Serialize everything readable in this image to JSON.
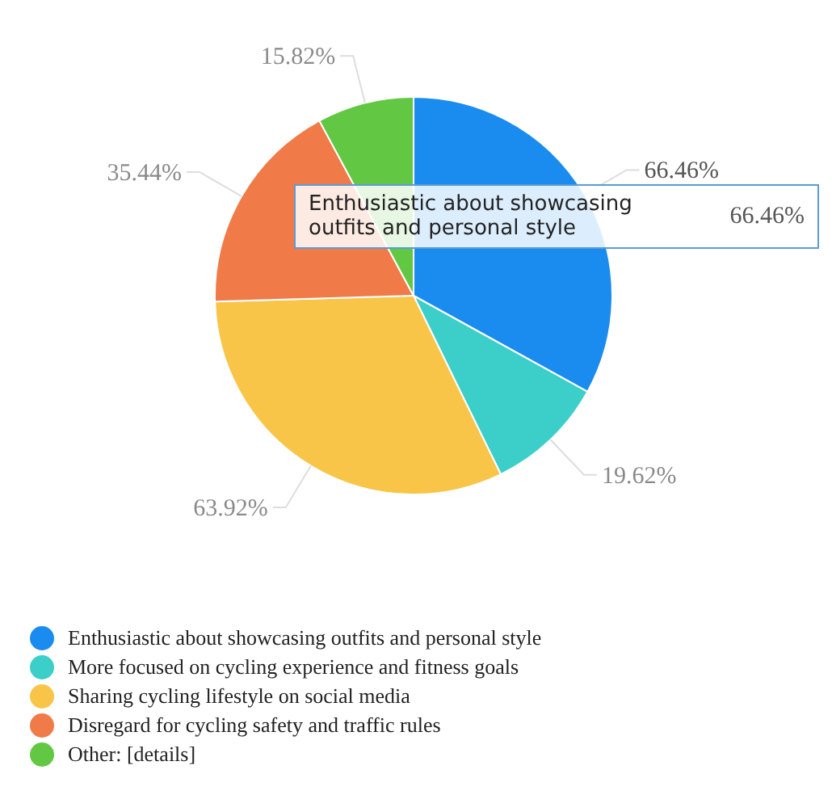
{
  "chart_data": {
    "type": "pie",
    "categories": [
      "Enthusiastic about showcasing outfits and personal style",
      "More focused on cycling experience and fitness goals",
      "Sharing cycling lifestyle on social media",
      "Disregard for cycling safety and traffic rules",
      "Other: [details]"
    ],
    "values": [
      66.46,
      19.62,
      63.92,
      35.44,
      15.82
    ],
    "value_labels": [
      "66.46%",
      "19.62%",
      "63.92%",
      "35.44%",
      "15.82%"
    ],
    "colors": [
      "#1a8cf0",
      "#3ccfc9",
      "#f8c548",
      "#f07a48",
      "#62c843"
    ],
    "legend": "bottom",
    "annotations": [
      "Enthusiastic about showcasing outfits and personal style",
      "66.46%"
    ]
  }
}
